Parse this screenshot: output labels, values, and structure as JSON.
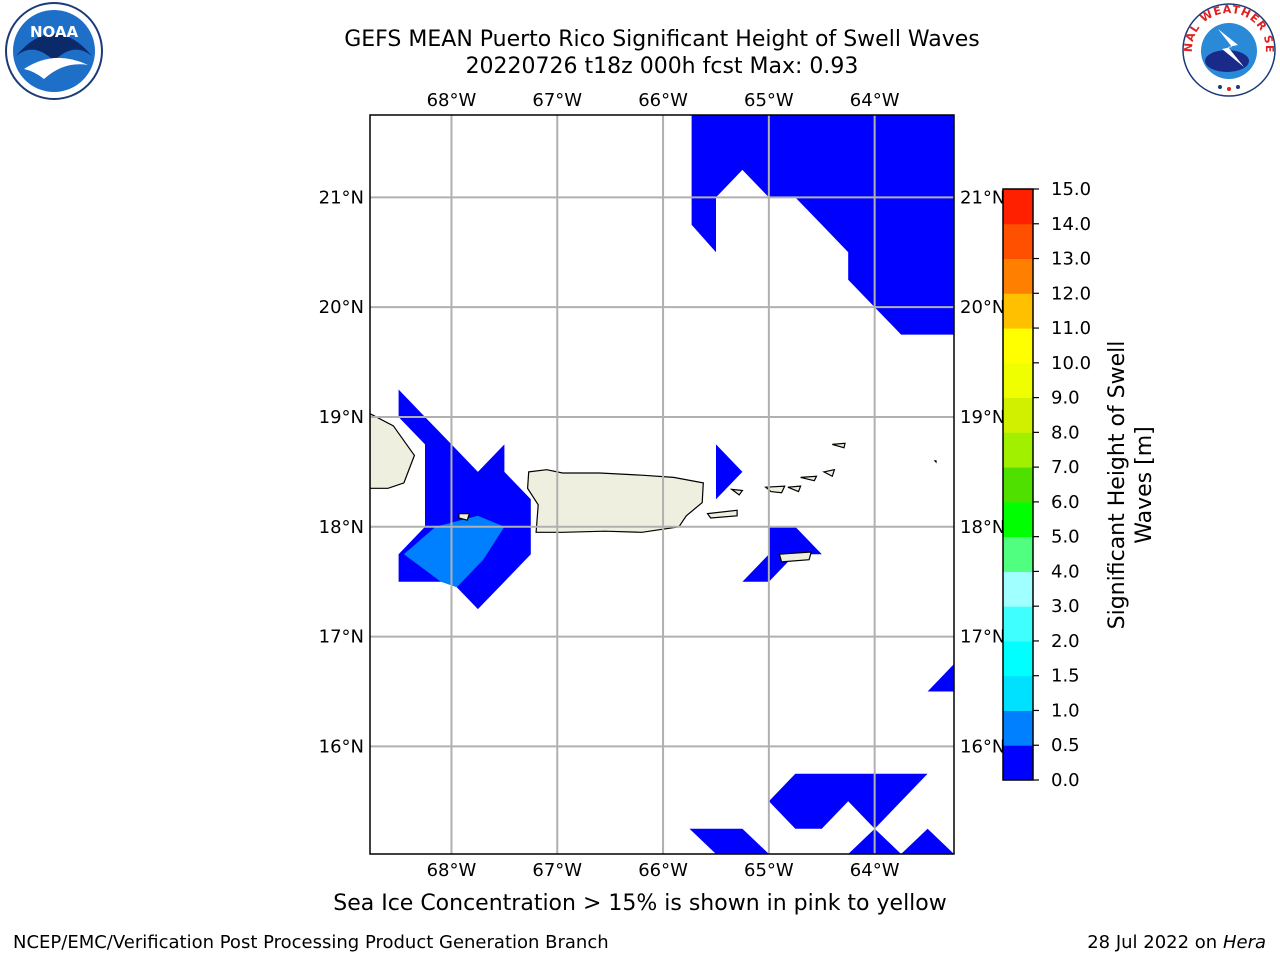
{
  "title": {
    "line1": "GEFS MEAN Puerto Rico Significant Height of Swell Waves",
    "line2": "20220726 t18z 000h fcst   Max: 0.93"
  },
  "logos": {
    "left": {
      "icon": "noaa-logo",
      "text": "NOAA"
    },
    "right": {
      "icon": "national-weather-service-logo",
      "text": "NATIONAL WEATHER SERVICE"
    }
  },
  "map": {
    "lon_range": [
      -68.77,
      -63.25
    ],
    "lat_range": [
      15.02,
      21.75
    ],
    "lon_ticks": [
      {
        "value": -68,
        "label": "68°W"
      },
      {
        "value": -67,
        "label": "67°W"
      },
      {
        "value": -66,
        "label": "66°W"
      },
      {
        "value": -65,
        "label": "65°W"
      },
      {
        "value": -64,
        "label": "64°W"
      }
    ],
    "lat_ticks": [
      {
        "value": 16,
        "label": "16°N"
      },
      {
        "value": 17,
        "label": "17°N"
      },
      {
        "value": 18,
        "label": "18°N"
      },
      {
        "value": 19,
        "label": "19°N"
      },
      {
        "value": 20,
        "label": "20°N"
      },
      {
        "value": 21,
        "label": "21°N"
      }
    ],
    "grid": true,
    "land_color": "#efefdf",
    "ocean_color": "#ffffff",
    "fields": [
      {
        "level": "0.0-0.5",
        "color": "#0000ff",
        "polygons": [
          [
            [
              -65.73,
              21.75
            ],
            [
              -63.75,
              21.75
            ],
            [
              -64.0,
              21.27
            ],
            [
              -64.25,
              21.5
            ],
            [
              -64.25,
              21.75
            ],
            [
              -63.25,
              21.75
            ],
            [
              -63.25,
              19.75
            ],
            [
              -63.75,
              19.75
            ],
            [
              -64.25,
              20.25
            ],
            [
              -64.25,
              20.5
            ],
            [
              -64.5,
              20.75
            ],
            [
              -64.75,
              21.0
            ],
            [
              -65.0,
              21.0
            ],
            [
              -65.25,
              21.25
            ],
            [
              -65.5,
              21.0
            ],
            [
              -65.5,
              20.5
            ],
            [
              -65.73,
              20.75
            ]
          ],
          [
            [
              -68.5,
              19.25
            ],
            [
              -68.25,
              19.0
            ],
            [
              -68.0,
              18.75
            ],
            [
              -67.75,
              18.5
            ],
            [
              -67.5,
              18.75
            ],
            [
              -67.5,
              18.5
            ],
            [
              -67.25,
              18.25
            ],
            [
              -67.25,
              17.75
            ],
            [
              -67.5,
              17.5
            ],
            [
              -67.75,
              17.25
            ],
            [
              -68.0,
              17.5
            ],
            [
              -68.5,
              17.5
            ],
            [
              -68.5,
              17.75
            ],
            [
              -68.25,
              18.0
            ],
            [
              -68.25,
              18.75
            ],
            [
              -68.5,
              19.0
            ]
          ],
          [
            [
              -65.5,
              18.75
            ],
            [
              -65.25,
              18.5
            ],
            [
              -65.5,
              18.25
            ]
          ],
          [
            [
              -65.0,
              18.0
            ],
            [
              -64.75,
              18.0
            ],
            [
              -64.5,
              17.75
            ],
            [
              -64.75,
              17.75
            ],
            [
              -65.0,
              17.5
            ],
            [
              -65.25,
              17.5
            ],
            [
              -65.0,
              17.75
            ]
          ],
          [
            [
              -63.25,
              16.75
            ],
            [
              -63.25,
              16.5
            ],
            [
              -63.5,
              16.5
            ]
          ],
          [
            [
              -64.75,
              15.75
            ],
            [
              -63.5,
              15.75
            ],
            [
              -64.0,
              15.25
            ],
            [
              -64.25,
              15.5
            ],
            [
              -64.5,
              15.25
            ],
            [
              -64.75,
              15.25
            ],
            [
              -65.0,
              15.5
            ]
          ],
          [
            [
              -65.75,
              15.25
            ],
            [
              -65.25,
              15.25
            ],
            [
              -65.0,
              15.02
            ],
            [
              -65.5,
              15.02
            ]
          ],
          [
            [
              -64.25,
              15.02
            ],
            [
              -64.0,
              15.25
            ],
            [
              -63.75,
              15.02
            ]
          ],
          [
            [
              -63.5,
              15.25
            ],
            [
              -63.25,
              15.02
            ],
            [
              -63.75,
              15.02
            ]
          ]
        ]
      },
      {
        "level": "0.5-1.0",
        "color": "#0080ff",
        "polygons": [
          [
            [
              -68.45,
              17.75
            ],
            [
              -68.15,
              18.0
            ],
            [
              -67.75,
              18.1
            ],
            [
              -67.5,
              18.0
            ],
            [
              -67.7,
              17.7
            ],
            [
              -67.95,
              17.45
            ],
            [
              -68.1,
              17.5
            ]
          ]
        ]
      }
    ],
    "land": [
      {
        "name": "Puerto Rico",
        "polygon": [
          [
            -67.27,
            18.5
          ],
          [
            -67.1,
            18.52
          ],
          [
            -66.95,
            18.49
          ],
          [
            -66.6,
            18.49
          ],
          [
            -66.2,
            18.47
          ],
          [
            -65.9,
            18.45
          ],
          [
            -65.62,
            18.4
          ],
          [
            -65.63,
            18.22
          ],
          [
            -65.78,
            18.1
          ],
          [
            -65.85,
            18.0
          ],
          [
            -66.2,
            17.95
          ],
          [
            -66.55,
            17.96
          ],
          [
            -66.95,
            17.95
          ],
          [
            -67.2,
            17.95
          ],
          [
            -67.18,
            18.2
          ],
          [
            -67.28,
            18.35
          ]
        ]
      },
      {
        "name": "Hispaniola",
        "polygon": [
          [
            -68.77,
            19.03
          ],
          [
            -68.55,
            18.92
          ],
          [
            -68.35,
            18.65
          ],
          [
            -68.45,
            18.4
          ],
          [
            -68.6,
            18.35
          ],
          [
            -68.77,
            18.35
          ]
        ]
      },
      {
        "name": "Mona",
        "polygon": [
          [
            -67.93,
            18.12
          ],
          [
            -67.83,
            18.12
          ],
          [
            -67.85,
            18.06
          ],
          [
            -67.93,
            18.08
          ]
        ]
      },
      {
        "name": "Vieques",
        "polygon": [
          [
            -65.58,
            18.12
          ],
          [
            -65.3,
            18.15
          ],
          [
            -65.3,
            18.1
          ],
          [
            -65.55,
            18.08
          ]
        ]
      },
      {
        "name": "Culebra",
        "polygon": [
          [
            -65.35,
            18.34
          ],
          [
            -65.25,
            18.33
          ],
          [
            -65.28,
            18.29
          ]
        ]
      },
      {
        "name": "St Thomas",
        "polygon": [
          [
            -65.03,
            18.36
          ],
          [
            -64.85,
            18.37
          ],
          [
            -64.88,
            18.31
          ],
          [
            -64.98,
            18.32
          ]
        ]
      },
      {
        "name": "St John",
        "polygon": [
          [
            -64.82,
            18.36
          ],
          [
            -64.7,
            18.37
          ],
          [
            -64.72,
            18.32
          ]
        ]
      },
      {
        "name": "Tortola",
        "polygon": [
          [
            -64.7,
            18.45
          ],
          [
            -64.55,
            18.46
          ],
          [
            -64.57,
            18.42
          ]
        ]
      },
      {
        "name": "Anegada",
        "polygon": [
          [
            -64.4,
            18.75
          ],
          [
            -64.28,
            18.76
          ],
          [
            -64.29,
            18.72
          ]
        ]
      },
      {
        "name": "Virgin Gorda",
        "polygon": [
          [
            -64.48,
            18.5
          ],
          [
            -64.38,
            18.52
          ],
          [
            -64.4,
            18.46
          ]
        ]
      },
      {
        "name": "St Croix",
        "polygon": [
          [
            -64.9,
            17.75
          ],
          [
            -64.6,
            17.77
          ],
          [
            -64.62,
            17.7
          ],
          [
            -64.88,
            17.68
          ]
        ]
      },
      {
        "name": "Sombrero",
        "polygon": [
          [
            -63.43,
            18.6
          ],
          [
            -63.42,
            18.6
          ],
          [
            -63.42,
            18.59
          ]
        ]
      }
    ]
  },
  "colorbar": {
    "label": "Significant Height of Swell Waves [m]",
    "label_lines": [
      "Significant Height of Swell",
      "Waves [m]"
    ],
    "range": [
      0,
      15
    ],
    "levels": [
      0.0,
      0.5,
      1.0,
      1.5,
      2.0,
      3.0,
      4.0,
      5.0,
      6.0,
      7.0,
      8.0,
      9.0,
      10.0,
      11.0,
      12.0,
      13.0,
      14.0,
      15.0
    ],
    "tick_labels": [
      "0.0",
      "0.5",
      "1.0",
      "1.5",
      "2.0",
      "3.0",
      "4.0",
      "5.0",
      "6.0",
      "7.0",
      "8.0",
      "9.0",
      "10.0",
      "11.0",
      "12.0",
      "13.0",
      "14.0",
      "15.0"
    ],
    "colors": [
      "#0000ff",
      "#0080ff",
      "#00e0ff",
      "#00ffff",
      "#40ffff",
      "#a0ffff",
      "#50ff80",
      "#00ff00",
      "#50e000",
      "#a0f000",
      "#d0f000",
      "#f0ff00",
      "#ffff00",
      "#ffc000",
      "#ff8000",
      "#ff5000",
      "#ff2000"
    ]
  },
  "footer": {
    "note": "Sea Ice Concentration > 15% is shown in pink to yellow",
    "credit": "NCEP/EMC/Verification Post Processing Product Generation Branch",
    "date": "28 Jul 2022 on ",
    "system": "Hera"
  }
}
